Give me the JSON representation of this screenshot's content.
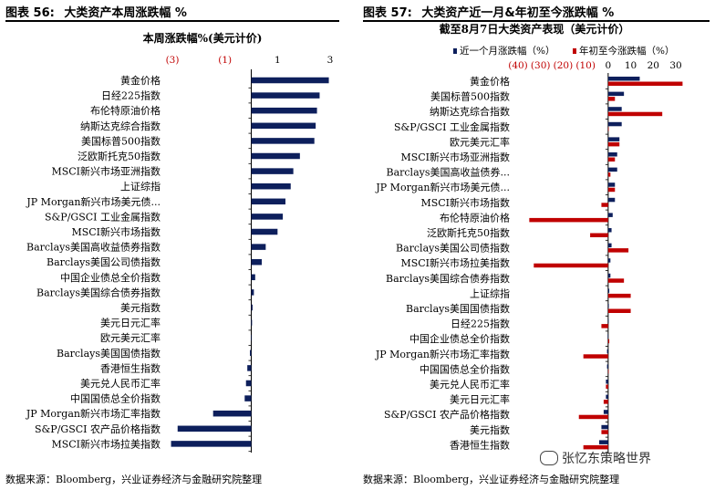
{
  "left_figure": {
    "number_label": "图表 56:",
    "title": "大类资产本周涨跌幅 %",
    "source": "数据来源：Bloomberg，兴业证券经济与金融研究院整理"
  },
  "right_figure": {
    "number_label": "图表 57:",
    "title": "大类资产近一月&年初至今涨跌幅 %",
    "source": "数据来源：Bloomberg，兴业证券经济与金融研究院整理"
  },
  "watermark": "张忆东策略世界",
  "chart_data": [
    {
      "type": "bar",
      "orientation": "horizontal",
      "title": "本周涨跌幅%(美元计价)",
      "xlim": [
        -3,
        3
      ],
      "ticks": [
        -3,
        -1,
        1,
        3
      ],
      "tick_labels": [
        "(3)",
        "(1)",
        "1",
        "3"
      ],
      "categories": [
        "黄金价格",
        "日经225指数",
        "布伦特原油价格",
        "纳斯达克综合指数",
        "美国标普500指数",
        "泛欧斯托克50指数",
        "MSCI新兴市场亚洲指数",
        "上证综指",
        "JP Morgan新兴市场美元债...",
        "S&P/GSCI 工业金属指数",
        "MSCI新兴市场指数",
        "Barclays美国高收益债券指数",
        "Barclays美国公司债指数",
        "中国企业债总全价指数",
        "Barclays美国综合债券指数",
        "美元指数",
        "美元日元汇率",
        "欧元美元汇率",
        "Barclays美国国债指数",
        "香港恒生指数",
        "美元兑人民币汇率",
        "中国国债总全价指数",
        "JP Morgan新兴市场汇率指数",
        "S&P/GSCI 农产品价格指数",
        "MSCI新兴市场拉美指数"
      ],
      "series": [
        {
          "name": "本周涨跌幅",
          "color": "#0d1f5c",
          "values": [
            2.95,
            2.6,
            2.5,
            2.45,
            2.4,
            1.85,
            1.6,
            1.5,
            1.3,
            1.2,
            1.0,
            0.55,
            0.4,
            0.15,
            0.1,
            0.05,
            0.03,
            0.02,
            -0.05,
            -0.15,
            -0.2,
            -0.25,
            -1.45,
            -2.8,
            -3.05
          ]
        }
      ]
    },
    {
      "type": "bar",
      "orientation": "horizontal",
      "title": "截至8月7日大类资产表现（美元计价）",
      "xlim": [
        -40,
        30
      ],
      "ticks": [
        -40,
        -30,
        -20,
        -10,
        0,
        10,
        20,
        30
      ],
      "tick_labels": [
        "(40)",
        "(30)",
        "(20)",
        "(10)",
        "0",
        "10",
        "20",
        "30"
      ],
      "categories": [
        "黄金价格",
        "美国标普500指数",
        "纳斯达克综合指数",
        "S&P/GSCI 工业金属指数",
        "欧元美元汇率",
        "MSCI新兴市场亚洲指数",
        "Barclays美国高收益债券...",
        "JP Morgan新兴市场美元债...",
        "MSCI新兴市场指数",
        "布伦特原油价格",
        "泛欧斯托克50指数",
        "Barclays美国公司债指数",
        "MSCI新兴市场拉美指数",
        "Barclays美国综合债券指数",
        "上证综指",
        "Barclays美国国债指数",
        "日经225指数",
        "中国企业债总全价指数",
        "JP Morgan新兴市场汇率指数",
        "中国国债总全价指数",
        "美元兑人民币汇率",
        "美元日元汇率",
        "S&P/GSCI 农产品价格指数",
        "美元指数",
        "香港恒生指数"
      ],
      "series": [
        {
          "name": "近一个月涨跌幅（%）",
          "color": "#0d1f5c",
          "values": [
            14,
            7,
            6,
            6,
            5,
            4,
            4,
            3,
            3,
            2,
            1.5,
            1.5,
            1,
            1,
            0.5,
            0.3,
            0,
            -0.2,
            -0.5,
            -0.5,
            -1,
            -1,
            -2,
            -3,
            -4
          ]
        },
        {
          "name": "年初至今涨跌幅（%）",
          "color": "#c00000",
          "values": [
            33,
            3,
            24,
            0,
            5,
            3,
            1,
            3,
            -3,
            -35,
            -8,
            9,
            -33,
            7,
            10,
            10,
            -3,
            0.5,
            -11,
            0,
            -1,
            -2,
            -13,
            -3,
            -11
          ]
        }
      ]
    }
  ]
}
